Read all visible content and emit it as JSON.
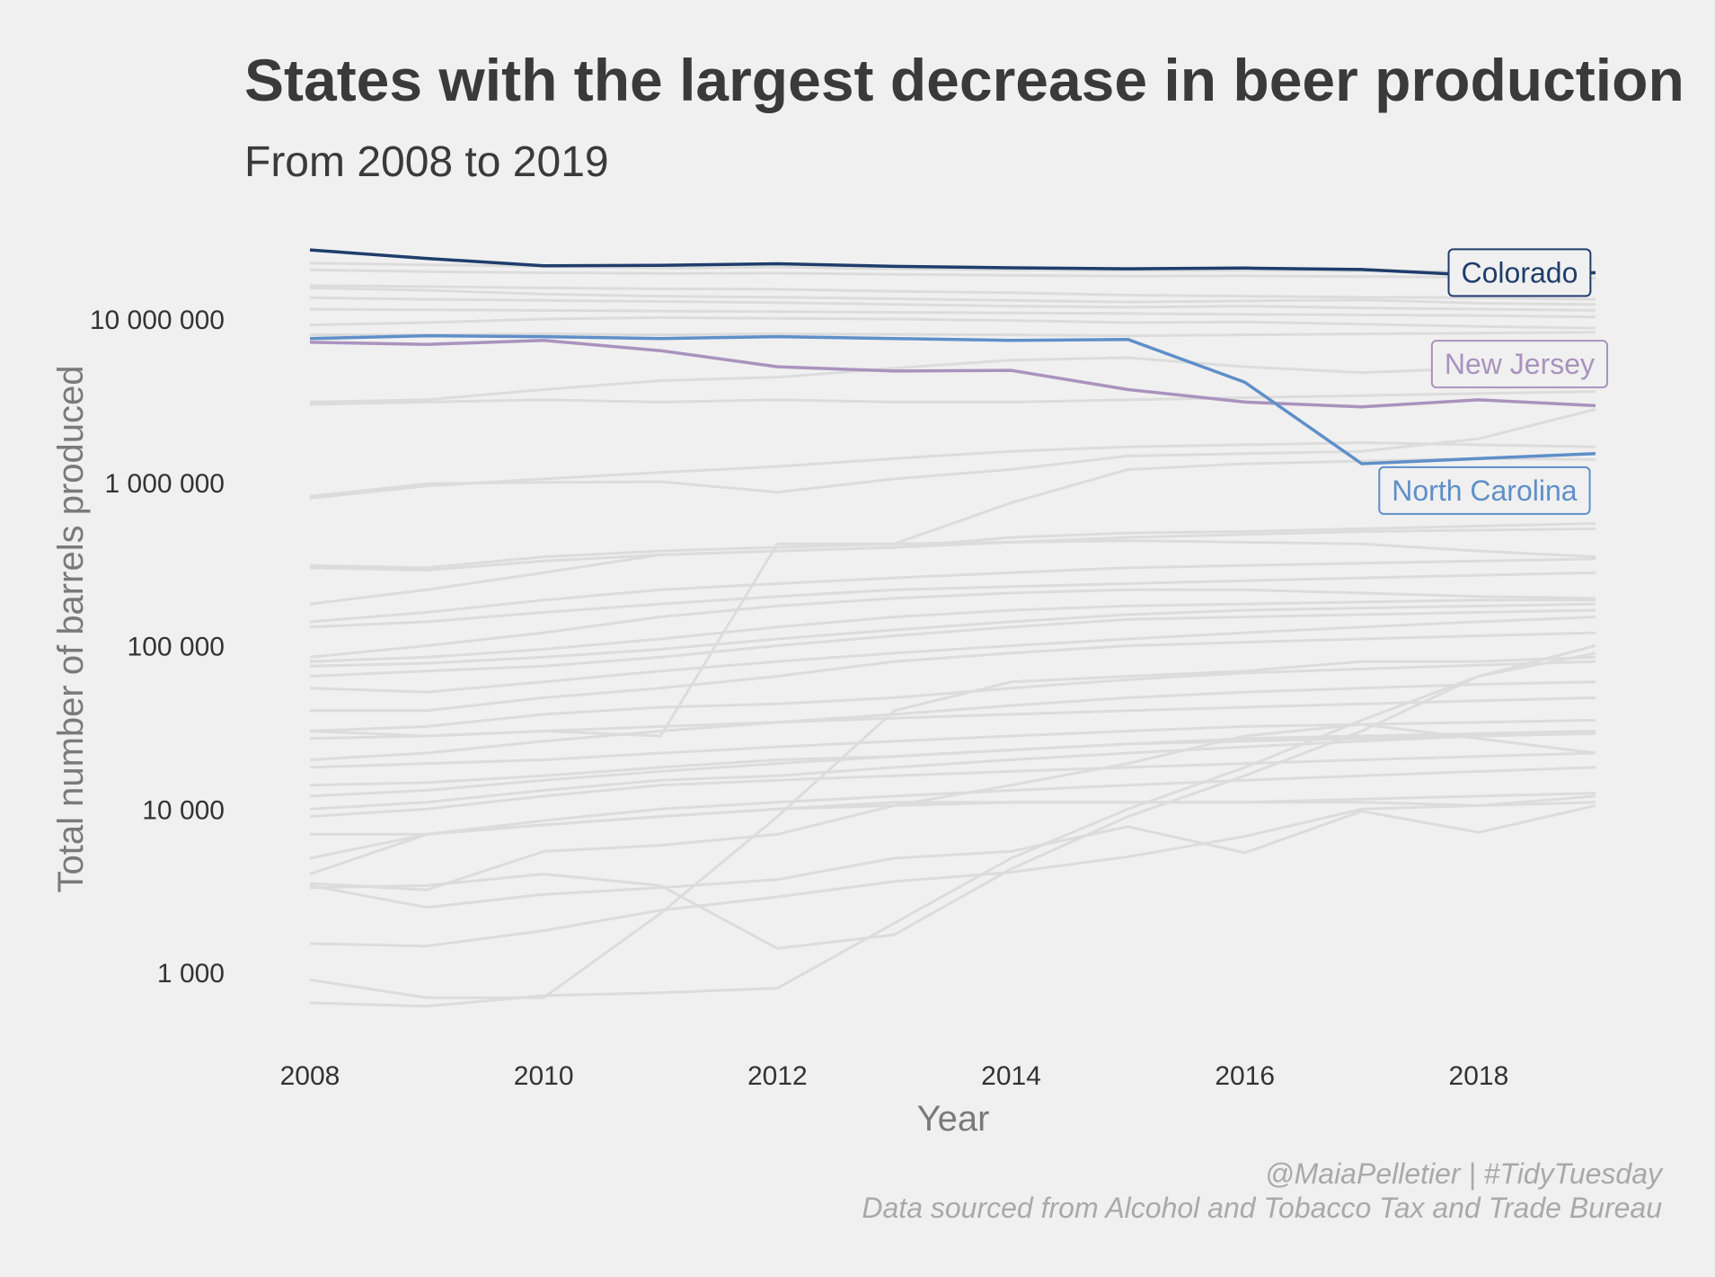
{
  "chart_data": {
    "type": "line",
    "title": "States with the largest decrease in beer production",
    "subtitle": "From 2008 to 2019",
    "xlabel": "Year",
    "ylabel": "Total number of barrels produced",
    "x": [
      2008,
      2009,
      2010,
      2011,
      2012,
      2013,
      2014,
      2015,
      2016,
      2017,
      2018,
      2019
    ],
    "xlim": [
      2008,
      2019
    ],
    "ylim": [
      400,
      33000000
    ],
    "yscale": "log",
    "x_ticks": [
      2008,
      2010,
      2012,
      2014,
      2016,
      2018
    ],
    "x_tick_labels": [
      "2008",
      "2010",
      "2012",
      "2014",
      "2016",
      "2018"
    ],
    "y_ticks": [
      1000,
      10000,
      100000,
      1000000,
      10000000
    ],
    "y_tick_labels": [
      "1 000",
      "10 000",
      "100 000",
      "1 000 000",
      "10 000 000"
    ],
    "grid": false,
    "legend": "none (direct labels at right)",
    "highlighted_series": [
      {
        "name": "Colorado",
        "color": "#1f3d6b",
        "values": [
          26500000,
          23500000,
          21200000,
          21300000,
          21800000,
          21000000,
          20600000,
          20300000,
          20500000,
          20100000,
          18500000,
          19200000
        ]
      },
      {
        "name": "New Jersey",
        "color": "#a993be",
        "values": [
          7200000,
          7000000,
          7400000,
          6400000,
          5100000,
          4800000,
          4850000,
          3700000,
          3100000,
          2900000,
          3200000,
          2950000
        ]
      },
      {
        "name": "North Carolina",
        "color": "#5f8fc9",
        "values": [
          7600000,
          7900000,
          7800000,
          7600000,
          7800000,
          7600000,
          7400000,
          7500000,
          4100000,
          1300000,
          1400000,
          1500000
        ]
      }
    ],
    "background_series_color": "#dcdcdc",
    "background_series": [
      [
        22000000,
        21500000,
        21000000,
        20500000,
        20800000,
        20300000,
        20000000,
        19800000,
        19900000,
        19700000,
        19500000,
        19400000
      ],
      [
        20000000,
        19500000,
        19200000,
        19000000,
        19100000,
        18800000,
        18500000,
        18300000,
        18400000,
        18200000,
        18000000,
        17800000
      ],
      [
        16000000,
        15800000,
        15500000,
        15300000,
        15200000,
        14800000,
        14500000,
        14000000,
        13800000,
        13600000,
        13500000,
        13200000
      ],
      [
        15500000,
        15000000,
        14200000,
        13800000,
        13600000,
        13300000,
        13000000,
        12700000,
        12900000,
        13100000,
        12500000,
        12300000
      ],
      [
        13500000,
        13200000,
        13000000,
        12800000,
        12600000,
        12300000,
        12000000,
        11800000,
        12000000,
        11700000,
        11500000,
        11300000
      ],
      [
        11500000,
        11400000,
        11300000,
        11200000,
        11100000,
        11000000,
        10900000,
        10800000,
        10700000,
        10600000,
        10500000,
        10300000
      ],
      [
        9200000,
        9500000,
        10000000,
        10200000,
        10100000,
        10000000,
        9800000,
        9500000,
        9600000,
        9300000,
        9000000,
        8800000
      ],
      [
        8000000,
        8000000,
        8100000,
        8000000,
        8100000,
        8050000,
        8000000,
        7900000,
        8000000,
        8100000,
        8200000,
        8300000
      ],
      [
        3100000,
        3200000,
        3700000,
        4200000,
        4400000,
        5000000,
        5600000,
        5800000,
        5100000,
        4700000,
        5000000,
        5300000
      ],
      [
        3000000,
        3100000,
        3200000,
        3100000,
        3200000,
        3100000,
        3100000,
        3200000,
        3300000,
        3400000,
        3500000,
        3600000
      ],
      [
        800000,
        950000,
        1050000,
        1150000,
        1250000,
        1400000,
        1550000,
        1650000,
        1700000,
        1750000,
        1700000,
        1650000
      ],
      [
        820000,
        980000,
        1000000,
        1010000,
        870000,
        1050000,
        1200000,
        1450000,
        1500000,
        1550000,
        1850000,
        2800000
      ],
      [
        310000,
        300000,
        350000,
        380000,
        400000,
        420000,
        750000,
        1200000,
        1300000,
        1350000,
        1400000,
        1380000
      ],
      [
        300000,
        290000,
        330000,
        360000,
        380000,
        400000,
        460000,
        490000,
        500000,
        520000,
        540000,
        560000
      ],
      [
        180000,
        220000,
        280000,
        360000,
        380000,
        400000,
        430000,
        460000,
        480000,
        500000,
        510000,
        520000
      ],
      [
        140000,
        160000,
        190000,
        220000,
        240000,
        260000,
        280000,
        300000,
        310000,
        320000,
        330000,
        340000
      ],
      [
        130000,
        140000,
        160000,
        180000,
        200000,
        220000,
        230000,
        240000,
        250000,
        260000,
        270000,
        280000
      ],
      [
        85000,
        100000,
        120000,
        150000,
        175000,
        195000,
        210000,
        220000,
        220000,
        210000,
        200000,
        195000
      ],
      [
        80000,
        85000,
        95000,
        110000,
        130000,
        150000,
        165000,
        175000,
        180000,
        185000,
        190000,
        190000
      ],
      [
        75000,
        78000,
        85000,
        95000,
        110000,
        125000,
        140000,
        155000,
        165000,
        170000,
        175000,
        180000
      ],
      [
        65000,
        70000,
        75000,
        85000,
        100000,
        115000,
        130000,
        145000,
        150000,
        155000,
        160000,
        165000
      ],
      [
        55000,
        52000,
        60000,
        70000,
        80000,
        90000,
        100000,
        110000,
        120000,
        130000,
        140000,
        150000
      ],
      [
        30000,
        28000,
        30000,
        28000,
        420000,
        420000,
        430000,
        440000,
        430000,
        420000,
        380000,
        350000
      ],
      [
        40000,
        40000,
        48000,
        55000,
        65000,
        80000,
        90000,
        100000,
        105000,
        110000,
        115000,
        120000
      ],
      [
        30000,
        32000,
        38000,
        42000,
        44000,
        48000,
        55000,
        62000,
        68000,
        72000,
        76000,
        80000
      ],
      [
        27000,
        28000,
        30000,
        32000,
        34000,
        36000,
        38000,
        40000,
        42000,
        44000,
        46000,
        48000
      ],
      [
        20000,
        22000,
        26000,
        30000,
        34000,
        38000,
        43000,
        48000,
        52000,
        55000,
        58000,
        60000
      ],
      [
        18000,
        19000,
        20000,
        22000,
        24000,
        26000,
        28000,
        30000,
        32000,
        33000,
        34000,
        35000
      ],
      [
        14000,
        14500,
        16000,
        18000,
        20000,
        21000,
        23000,
        25000,
        26000,
        27000,
        28000,
        29000
      ],
      [
        12000,
        13000,
        15000,
        17000,
        19000,
        21000,
        23000,
        25000,
        27000,
        28000,
        29000,
        30000
      ],
      [
        10000,
        11000,
        13000,
        15000,
        16000,
        18000,
        20000,
        22000,
        24000,
        26000,
        28000,
        30000
      ],
      [
        9000,
        10000,
        12000,
        14000,
        15000,
        16000,
        17000,
        18000,
        19000,
        20000,
        21000,
        22000
      ],
      [
        7000,
        7000,
        8000,
        9000,
        10000,
        10500,
        11000,
        11000,
        11000,
        11500,
        12000,
        12500
      ],
      [
        5000,
        7000,
        8500,
        10000,
        11000,
        12000,
        13000,
        14000,
        15000,
        16000,
        17000,
        18000
      ],
      [
        4000,
        7000,
        8000,
        9000,
        10000,
        11000,
        11000,
        11000,
        11000,
        11000,
        10500,
        11000
      ],
      [
        3500,
        3200,
        5500,
        6000,
        7000,
        10500,
        14000,
        19000,
        28000,
        33000,
        27000,
        22000
      ],
      [
        3400,
        2500,
        3000,
        3300,
        3700,
        5000,
        5500,
        7800,
        5400,
        9700,
        7200,
        10500
      ],
      [
        3300,
        3400,
        4000,
        3400,
        1400,
        1700,
        4300,
        9000,
        16000,
        30000,
        65000,
        90000
      ],
      [
        1500,
        1450,
        1800,
        2400,
        2900,
        3600,
        4100,
        5100,
        6800,
        10000,
        10500,
        12000
      ],
      [
        900,
        700,
        700,
        2300,
        9000,
        40000,
        60000,
        65000,
        70000,
        80000,
        80000,
        85000
      ],
      [
        650,
        620,
        720,
        750,
        800,
        2000,
        5000,
        10000,
        18000,
        35000,
        65000,
        100000
      ]
    ],
    "annotations": [
      {
        "label": "Colorado",
        "series": "Colorado",
        "x": 2018.35
      },
      {
        "label": "New Jersey",
        "series": "New Jersey",
        "x": 2018.35
      },
      {
        "label": "North Carolina",
        "series": "North Carolina",
        "x": 2018.05
      }
    ],
    "caption": [
      "@MaiaPelletier | #TidyTuesday",
      "Data sourced from Alcohol and Tobacco Tax and Trade Bureau"
    ]
  }
}
